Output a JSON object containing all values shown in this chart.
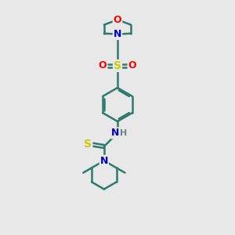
{
  "bg_color": "#e8e8e8",
  "bond_color": "#2d7a6e",
  "bond_width": 1.8,
  "atom_colors": {
    "N": "#0000cc",
    "O": "#ff0000",
    "S": "#cccc00",
    "H": "#708090",
    "C": "#2d7a6e"
  },
  "fig_size": [
    3.0,
    3.0
  ],
  "dpi": 100
}
